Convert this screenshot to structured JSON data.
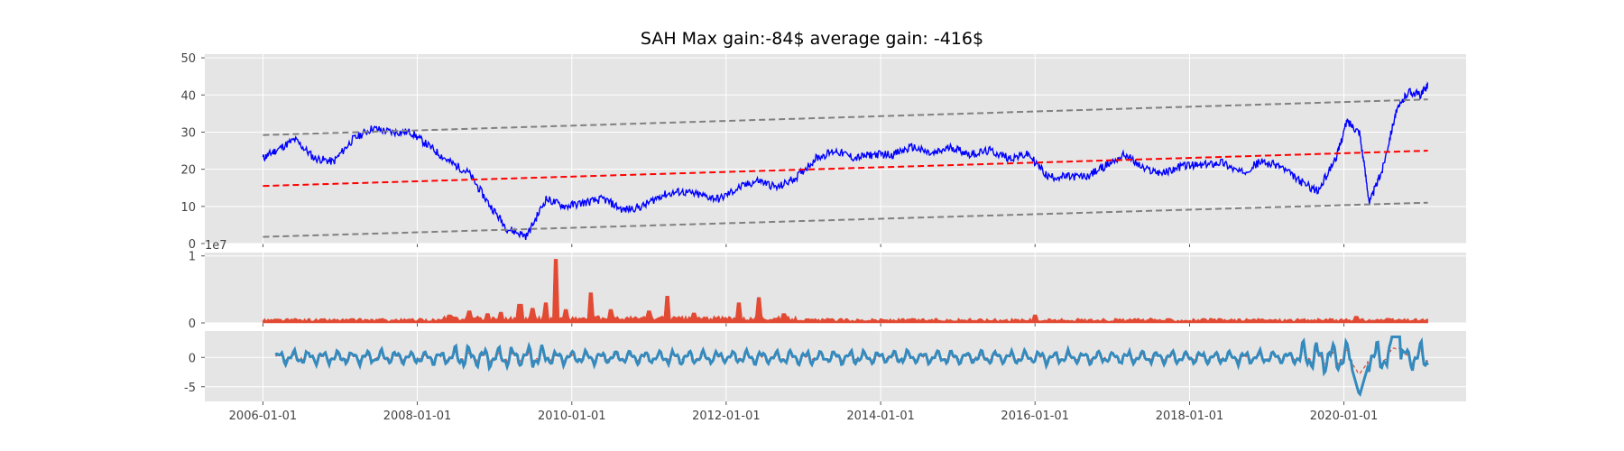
{
  "title": "SAH Max gain:-84$  average gain: -416$",
  "colors": {
    "panel_bg": "#e5e5e5",
    "grid": "#ffffff",
    "price": "#0000ff",
    "trend": "#ff0000",
    "band": "#808080",
    "volume": "#e24a33",
    "oscillator": "#348abd",
    "oscillator_dashed": "#e24a33"
  },
  "chart_data": [
    {
      "type": "line",
      "panel": "price",
      "x_tick_labels": [
        "2006-01-01",
        "2008-01-01",
        "2010-01-01",
        "2012-01-01",
        "2014-01-01",
        "2016-01-01",
        "2018-01-01",
        "2020-01-01"
      ],
      "xlim": [
        "2005-04-01",
        "2021-08-01"
      ],
      "ylim": [
        0,
        51
      ],
      "y_ticks": [
        0,
        10,
        20,
        30,
        40,
        50
      ],
      "grid": true,
      "series": [
        {
          "role": "price",
          "style": "solid",
          "x": [
            "2006-01-01",
            "2006-03-01",
            "2006-06-01",
            "2006-09-01",
            "2006-12-01",
            "2007-03-01",
            "2007-06-01",
            "2007-09-01",
            "2007-12-01",
            "2008-03-01",
            "2008-06-01",
            "2008-09-01",
            "2008-12-01",
            "2009-03-01",
            "2009-06-01",
            "2009-09-01",
            "2009-12-01",
            "2010-03-01",
            "2010-06-01",
            "2010-09-01",
            "2010-12-01",
            "2011-03-01",
            "2011-06-01",
            "2011-09-01",
            "2011-12-01",
            "2012-03-01",
            "2012-06-01",
            "2012-09-01",
            "2012-12-01",
            "2013-03-01",
            "2013-06-01",
            "2013-09-01",
            "2013-12-01",
            "2014-03-01",
            "2014-06-01",
            "2014-09-01",
            "2014-12-01",
            "2015-03-01",
            "2015-06-01",
            "2015-09-01",
            "2015-12-01",
            "2016-03-01",
            "2016-06-01",
            "2016-09-01",
            "2016-12-01",
            "2017-03-01",
            "2017-06-01",
            "2017-09-01",
            "2017-12-01",
            "2018-03-01",
            "2018-06-01",
            "2018-09-01",
            "2018-12-01",
            "2019-03-01",
            "2019-06-01",
            "2019-09-01",
            "2019-12-01",
            "2020-01-15",
            "2020-03-15",
            "2020-05-01",
            "2020-07-01",
            "2020-09-01",
            "2020-11-01",
            "2021-01-01",
            "2021-02-01"
          ],
          "y": [
            23,
            25,
            28,
            23,
            22,
            28,
            31,
            30,
            30,
            26,
            22,
            19,
            11,
            4,
            2,
            12,
            10,
            11,
            12,
            9,
            10,
            13,
            14,
            13,
            12,
            15,
            17,
            15,
            18,
            23,
            25,
            23,
            24,
            24,
            26,
            24,
            26,
            24,
            25,
            23,
            24,
            18,
            18,
            18,
            21,
            24,
            20,
            19,
            21,
            21,
            22,
            19,
            22,
            21,
            17,
            14,
            24,
            33,
            30,
            11,
            20,
            35,
            41,
            40,
            43
          ]
        },
        {
          "role": "trend",
          "style": "dashed",
          "x": [
            "2006-01-01",
            "2021-02-01"
          ],
          "y": [
            15.5,
            25.0
          ]
        },
        {
          "role": "upper-band",
          "style": "dashed",
          "x": [
            "2006-01-01",
            "2021-02-01"
          ],
          "y": [
            29.2,
            38.8
          ]
        },
        {
          "role": "lower-band",
          "style": "dashed",
          "x": [
            "2006-01-01",
            "2021-02-01"
          ],
          "y": [
            1.8,
            11.0
          ]
        }
      ]
    },
    {
      "type": "area",
      "panel": "volume",
      "y_exponent_label": "1e7",
      "ylim": [
        0,
        1.05
      ],
      "y_ticks": [
        0,
        1
      ],
      "grid": true,
      "baseline": 0.06,
      "spikes": [
        {
          "x": "2008-06-01",
          "y": 0.12
        },
        {
          "x": "2008-09-01",
          "y": 0.18
        },
        {
          "x": "2008-12-01",
          "y": 0.14
        },
        {
          "x": "2009-02-01",
          "y": 0.16
        },
        {
          "x": "2009-05-01",
          "y": 0.28
        },
        {
          "x": "2009-07-01",
          "y": 0.22
        },
        {
          "x": "2009-09-01",
          "y": 0.3
        },
        {
          "x": "2009-10-15",
          "y": 0.95
        },
        {
          "x": "2009-12-01",
          "y": 0.2
        },
        {
          "x": "2010-04-01",
          "y": 0.45
        },
        {
          "x": "2010-07-01",
          "y": 0.2
        },
        {
          "x": "2011-01-01",
          "y": 0.18
        },
        {
          "x": "2011-04-01",
          "y": 0.4
        },
        {
          "x": "2011-08-01",
          "y": 0.15
        },
        {
          "x": "2012-03-01",
          "y": 0.3
        },
        {
          "x": "2012-06-01",
          "y": 0.38
        },
        {
          "x": "2012-10-01",
          "y": 0.14
        },
        {
          "x": "2016-01-01",
          "y": 0.12
        },
        {
          "x": "2020-03-01",
          "y": 0.1
        }
      ]
    },
    {
      "type": "line",
      "panel": "oscillator",
      "ylim": [
        -7.5,
        4.5
      ],
      "y_ticks": [
        -5,
        0
      ],
      "grid": true,
      "series": [
        {
          "role": "oscillator",
          "style": "solid-thick"
        },
        {
          "role": "signal",
          "style": "dashed"
        }
      ]
    }
  ]
}
